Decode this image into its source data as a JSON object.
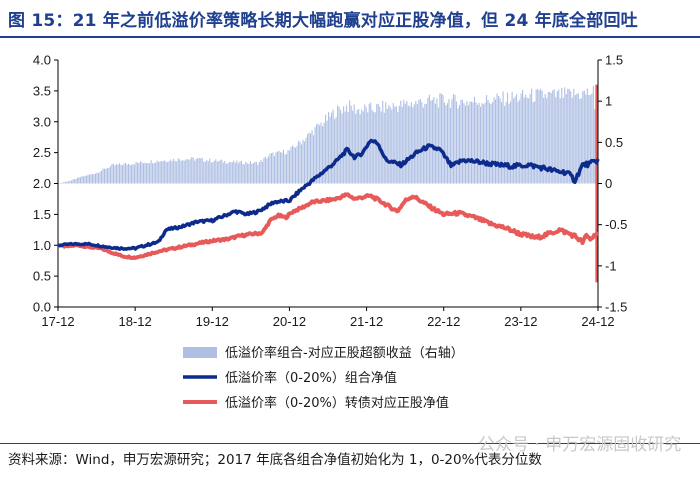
{
  "title": "图 15：21 年之前低溢价率策略长期大幅跑赢对应正股净值，但 24 年底全部回吐",
  "source": "资料来源：Wind，申万宏源研究；2017 年底各组合净值初始化为 1，0-20%代表分位数",
  "watermark": "公众号 · 申万宏源固收研究",
  "colors": {
    "title": "#1f3f8f",
    "bar": "#aebfe3",
    "navy": "#0d2b8c",
    "red": "#e85a5a"
  },
  "chart_data": {
    "type": "line",
    "x_ticks": [
      "17-12",
      "18-12",
      "19-12",
      "20-12",
      "21-12",
      "22-12",
      "23-12",
      "24-12"
    ],
    "y_left": {
      "ylim": [
        0,
        4.0
      ],
      "ticks": [
        "0.0",
        "0.5",
        "1.0",
        "1.5",
        "2.0",
        "2.5",
        "3.0",
        "3.5",
        "4.0"
      ]
    },
    "y_right": {
      "ylim": [
        -1.5,
        1.5
      ],
      "ticks": [
        "-1.5",
        "-1",
        "-0.5",
        "0",
        "0.5",
        "1",
        "1.5"
      ]
    },
    "series": [
      {
        "name": "低溢价率组合-对应正股超额收益（右轴）",
        "kind": "bar",
        "axis": "right",
        "points": [
          [
            0,
            0
          ],
          [
            0.15,
            0.03
          ],
          [
            0.3,
            0.08
          ],
          [
            0.5,
            0.13
          ],
          [
            0.7,
            0.22
          ],
          [
            0.9,
            0.24
          ],
          [
            1.2,
            0.27
          ],
          [
            1.6,
            0.3
          ],
          [
            1.8,
            0.3
          ],
          [
            2.0,
            0.28
          ],
          [
            2.3,
            0.26
          ],
          [
            2.6,
            0.25
          ],
          [
            2.75,
            0.35
          ],
          [
            3.0,
            0.4
          ],
          [
            3.2,
            0.55
          ],
          [
            3.4,
            0.72
          ],
          [
            3.6,
            0.88
          ],
          [
            3.75,
            0.95
          ],
          [
            3.9,
            0.9
          ],
          [
            4.1,
            0.92
          ],
          [
            4.4,
            0.95
          ],
          [
            4.7,
            1.0
          ],
          [
            5.0,
            1.02
          ],
          [
            5.3,
            1.0
          ],
          [
            5.6,
            1.02
          ],
          [
            5.9,
            1.05
          ],
          [
            6.2,
            1.08
          ],
          [
            6.5,
            1.08
          ],
          [
            6.8,
            1.1
          ],
          [
            6.95,
            1.12
          ],
          [
            7.0,
            0.0
          ]
        ]
      },
      {
        "name": "低溢价率（0-20%）组合净值",
        "kind": "line",
        "axis": "left",
        "points": [
          [
            0,
            1.0
          ],
          [
            0.2,
            1.02
          ],
          [
            0.4,
            1.02
          ],
          [
            0.6,
            0.98
          ],
          [
            0.8,
            0.95
          ],
          [
            1.0,
            0.95
          ],
          [
            1.2,
            1.02
          ],
          [
            1.3,
            1.05
          ],
          [
            1.4,
            1.25
          ],
          [
            1.6,
            1.3
          ],
          [
            1.8,
            1.38
          ],
          [
            2.0,
            1.4
          ],
          [
            2.1,
            1.45
          ],
          [
            2.3,
            1.55
          ],
          [
            2.45,
            1.5
          ],
          [
            2.6,
            1.55
          ],
          [
            2.8,
            1.7
          ],
          [
            3.0,
            1.72
          ],
          [
            3.15,
            1.9
          ],
          [
            3.3,
            2.05
          ],
          [
            3.45,
            2.2
          ],
          [
            3.6,
            2.35
          ],
          [
            3.75,
            2.55
          ],
          [
            3.85,
            2.42
          ],
          [
            3.95,
            2.5
          ],
          [
            4.05,
            2.7
          ],
          [
            4.15,
            2.65
          ],
          [
            4.25,
            2.38
          ],
          [
            4.45,
            2.3
          ],
          [
            4.65,
            2.5
          ],
          [
            4.8,
            2.6
          ],
          [
            4.95,
            2.55
          ],
          [
            5.1,
            2.28
          ],
          [
            5.25,
            2.38
          ],
          [
            5.45,
            2.35
          ],
          [
            5.7,
            2.3
          ],
          [
            5.9,
            2.28
          ],
          [
            6.1,
            2.3
          ],
          [
            6.3,
            2.25
          ],
          [
            6.45,
            2.2
          ],
          [
            6.6,
            2.18
          ],
          [
            6.7,
            2.05
          ],
          [
            6.8,
            2.3
          ],
          [
            6.9,
            2.32
          ],
          [
            7.0,
            2.38
          ]
        ]
      },
      {
        "name": "低溢价率（0-20%）转债对应正股净值",
        "kind": "line",
        "axis": "left",
        "points": [
          [
            0,
            1.0
          ],
          [
            0.1,
            0.98
          ],
          [
            0.25,
            1.0
          ],
          [
            0.4,
            0.97
          ],
          [
            0.55,
            0.95
          ],
          [
            0.7,
            0.88
          ],
          [
            0.85,
            0.82
          ],
          [
            1.0,
            0.8
          ],
          [
            1.15,
            0.85
          ],
          [
            1.3,
            0.9
          ],
          [
            1.5,
            0.95
          ],
          [
            1.7,
            1.0
          ],
          [
            1.9,
            1.05
          ],
          [
            2.05,
            1.08
          ],
          [
            2.2,
            1.1
          ],
          [
            2.35,
            1.15
          ],
          [
            2.5,
            1.18
          ],
          [
            2.65,
            1.2
          ],
          [
            2.75,
            1.4
          ],
          [
            2.85,
            1.48
          ],
          [
            2.95,
            1.45
          ],
          [
            3.05,
            1.55
          ],
          [
            3.15,
            1.6
          ],
          [
            3.3,
            1.7
          ],
          [
            3.45,
            1.72
          ],
          [
            3.6,
            1.75
          ],
          [
            3.75,
            1.82
          ],
          [
            3.85,
            1.75
          ],
          [
            3.95,
            1.78
          ],
          [
            4.05,
            1.8
          ],
          [
            4.2,
            1.7
          ],
          [
            4.3,
            1.62
          ],
          [
            4.4,
            1.55
          ],
          [
            4.5,
            1.72
          ],
          [
            4.6,
            1.8
          ],
          [
            4.7,
            1.72
          ],
          [
            4.85,
            1.6
          ],
          [
            5.0,
            1.5
          ],
          [
            5.2,
            1.52
          ],
          [
            5.4,
            1.45
          ],
          [
            5.6,
            1.35
          ],
          [
            5.8,
            1.28
          ],
          [
            6.0,
            1.18
          ],
          [
            6.2,
            1.12
          ],
          [
            6.4,
            1.2
          ],
          [
            6.5,
            1.25
          ],
          [
            6.6,
            1.2
          ],
          [
            6.7,
            1.15
          ],
          [
            6.8,
            1.05
          ],
          [
            6.85,
            1.15
          ],
          [
            6.9,
            1.1
          ],
          [
            6.95,
            1.15
          ],
          [
            6.98,
            1.2
          ],
          [
            7.0,
            1.2
          ]
        ]
      }
    ],
    "legend": {
      "placement": "bottom",
      "items": [
        "低溢价率组合-对应正股超额收益（右轴）",
        "低溢价率（0-20%）组合净值",
        "低溢价率（0-20%）转债对应正股净值"
      ]
    }
  }
}
